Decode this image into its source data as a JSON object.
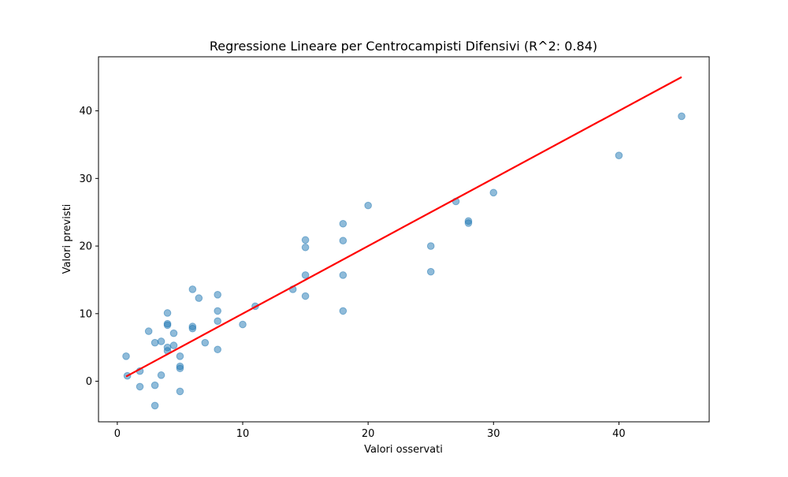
{
  "chart_data": {
    "type": "scatter",
    "title": "Regressione Lineare per Centrocampisti Difensivi (R^2: 0.84)",
    "xlabel": "Valori osservati",
    "ylabel": "Valori previsti",
    "xlim": [
      -1.5,
      47.2
    ],
    "ylim": [
      -6,
      48
    ],
    "xticks": [
      0,
      10,
      20,
      30,
      40
    ],
    "yticks": [
      0,
      10,
      20,
      30,
      40
    ],
    "grid": false,
    "series": [
      {
        "kind": "scatter",
        "color": "#1f77b4",
        "opacity": 0.5,
        "points": [
          [
            0.7,
            3.7
          ],
          [
            0.8,
            0.8
          ],
          [
            1.8,
            1.5
          ],
          [
            1.8,
            -0.8
          ],
          [
            2.5,
            7.4
          ],
          [
            3.0,
            5.7
          ],
          [
            3.0,
            -0.6
          ],
          [
            3.0,
            -3.6
          ],
          [
            3.5,
            5.9
          ],
          [
            3.5,
            0.9
          ],
          [
            4.0,
            10.1
          ],
          [
            4.0,
            8.5
          ],
          [
            4.0,
            8.3
          ],
          [
            4.0,
            5.0
          ],
          [
            4.0,
            4.5
          ],
          [
            4.5,
            7.1
          ],
          [
            4.5,
            5.3
          ],
          [
            5.0,
            3.7
          ],
          [
            5.0,
            2.2
          ],
          [
            5.0,
            1.9
          ],
          [
            5.0,
            -1.5
          ],
          [
            6.0,
            13.6
          ],
          [
            6.0,
            8.1
          ],
          [
            6.0,
            7.8
          ],
          [
            6.5,
            12.3
          ],
          [
            7.0,
            5.7
          ],
          [
            8.0,
            12.8
          ],
          [
            8.0,
            10.4
          ],
          [
            8.0,
            8.9
          ],
          [
            8.0,
            4.7
          ],
          [
            10.0,
            8.4
          ],
          [
            11.0,
            11.1
          ],
          [
            14.0,
            13.6
          ],
          [
            15.0,
            20.9
          ],
          [
            15.0,
            19.8
          ],
          [
            15.0,
            15.7
          ],
          [
            15.0,
            12.6
          ],
          [
            18.0,
            23.3
          ],
          [
            18.0,
            20.8
          ],
          [
            18.0,
            15.7
          ],
          [
            18.0,
            10.4
          ],
          [
            20.0,
            26.0
          ],
          [
            25.0,
            20.0
          ],
          [
            25.0,
            16.2
          ],
          [
            27.0,
            26.6
          ],
          [
            28.0,
            23.7
          ],
          [
            28.0,
            23.4
          ],
          [
            30.0,
            27.9
          ],
          [
            40.0,
            33.4
          ],
          [
            45.0,
            39.2
          ]
        ]
      },
      {
        "kind": "line",
        "color": "#ff0000",
        "points": [
          [
            0.7,
            0.7
          ],
          [
            45.0,
            45.0
          ]
        ]
      }
    ]
  }
}
